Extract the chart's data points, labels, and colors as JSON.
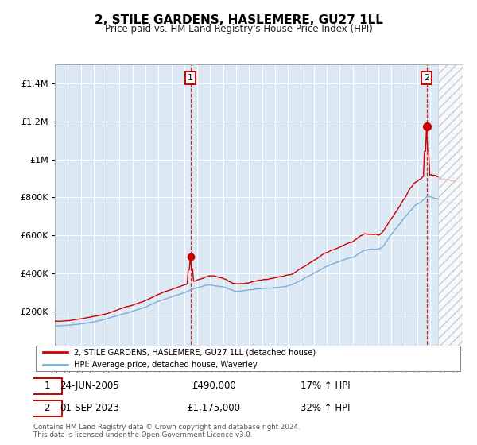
{
  "title": "2, STILE GARDENS, HASLEMERE, GU27 1LL",
  "subtitle": "Price paid vs. HM Land Registry's House Price Index (HPI)",
  "legend_line1": "2, STILE GARDENS, HASLEMERE, GU27 1LL (detached house)",
  "legend_line2": "HPI: Average price, detached house, Waverley",
  "ann1_label": "1",
  "ann1_date_str": "24-JUN-2005",
  "ann1_price_str": "£490,000",
  "ann1_hpi_str": "17% ↑ HPI",
  "ann1_year": 2005.47,
  "ann1_value": 490000,
  "ann2_label": "2",
  "ann2_date_str": "01-SEP-2023",
  "ann2_price_str": "£1,175,000",
  "ann2_hpi_str": "32% ↑ HPI",
  "ann2_year": 2023.67,
  "ann2_value": 1175000,
  "footer1": "Contains HM Land Registry data © Crown copyright and database right 2024.",
  "footer2": "This data is licensed under the Open Government Licence v3.0.",
  "hpi_color": "#7bafd4",
  "price_color": "#cc0000",
  "plot_bg": "#dce9f5",
  "ylim": [
    0,
    1500000
  ],
  "yticks": [
    0,
    200000,
    400000,
    600000,
    800000,
    1000000,
    1200000,
    1400000
  ],
  "hpi_base_vals": [
    118000,
    123000,
    130000,
    142000,
    158000,
    178000,
    198000,
    220000,
    248000,
    270000,
    292000,
    318000,
    338000,
    328000,
    305000,
    312000,
    320000,
    326000,
    336000,
    365000,
    400000,
    438000,
    462000,
    486000,
    525000,
    528000,
    608000,
    695000,
    775000,
    810000,
    795000,
    785000
  ],
  "price_base_vals": [
    138000,
    143000,
    152000,
    165000,
    183000,
    206000,
    228000,
    254000,
    286000,
    312000,
    336000,
    366000,
    390000,
    378000,
    352000,
    360000,
    370000,
    376000,
    388000,
    422000,
    462000,
    505000,
    533000,
    560000,
    606000,
    608000,
    700000,
    800000,
    892000,
    932000,
    915000,
    903000
  ],
  "xstart": 1995,
  "xend": 2026,
  "n_points": 380
}
